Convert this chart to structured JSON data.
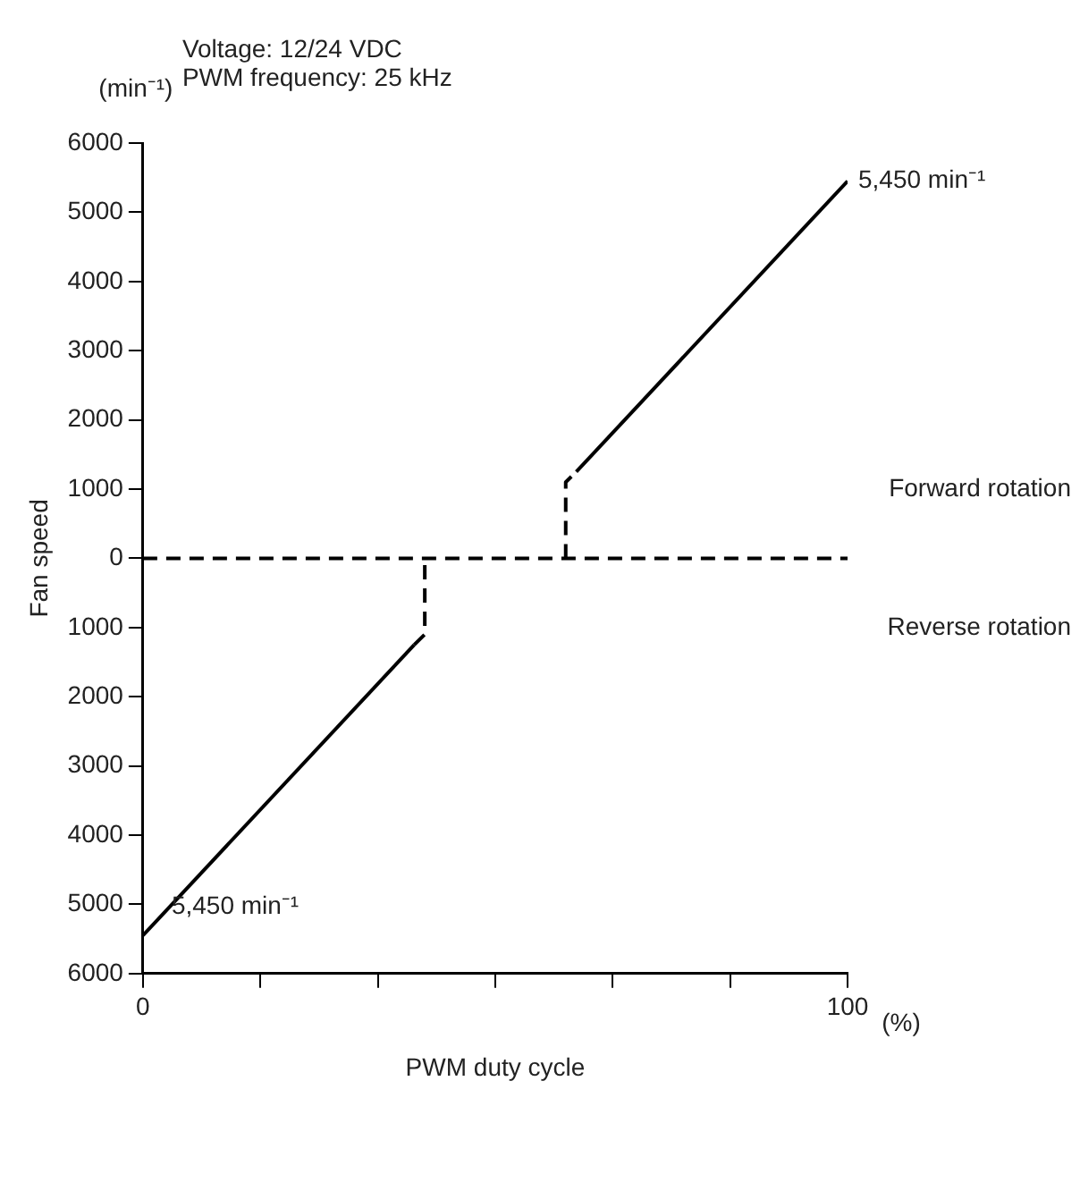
{
  "chart_data": {
    "type": "line",
    "xlabel": "PWM duty cycle",
    "ylabel": "Fan speed",
    "annotations": [
      "Voltage: 12/24 VDC",
      "PWM frequency: 25 kHz",
      "(min⁻¹)",
      "(%)",
      "Forward rotation",
      "Reverse rotation",
      {
        "text": "5,450 min⁻¹",
        "x": 100,
        "y": 5450
      },
      {
        "text": "5,450 min⁻¹",
        "x": 0,
        "y": -5450
      }
    ],
    "series": [
      {
        "color": "#000000",
        "line_style": "solid",
        "x": [
          0,
          38.5
        ],
        "values": [
          -5450,
          -1250
        ]
      },
      {
        "color": "#000000",
        "line_style": "dashed",
        "x": [
          38.5,
          40,
          40
        ],
        "values": [
          -1250,
          -1100,
          0
        ]
      },
      {
        "color": "#000000",
        "line_style": "dashed",
        "x": [
          0,
          100
        ],
        "values": [
          0,
          0
        ]
      },
      {
        "color": "#000000",
        "line_style": "dashed",
        "x": [
          60,
          60,
          61.5
        ],
        "values": [
          0,
          1100,
          1250
        ]
      },
      {
        "color": "#000000",
        "line_style": "solid",
        "x": [
          61.5,
          100
        ],
        "values": [
          1250,
          5450
        ]
      }
    ],
    "xlim": [
      0,
      100
    ],
    "xticks": [
      0,
      {
        "value": 16.67,
        "label": null
      },
      {
        "value": 33.33,
        "label": null
      },
      {
        "value": 50,
        "label": null
      },
      {
        "value": 66.67,
        "label": null
      },
      {
        "value": 83.33,
        "label": null
      },
      100
    ],
    "ylim": [
      -6000,
      6000
    ],
    "yticks": [
      {
        "value": -6000,
        "label": "6000"
      },
      {
        "value": -5000,
        "label": "5000"
      },
      {
        "value": -4000,
        "label": "4000"
      },
      {
        "value": -3000,
        "label": "3000"
      },
      {
        "value": -2000,
        "label": "2000"
      },
      {
        "value": -1000,
        "label": "1000"
      },
      0,
      1000,
      2000,
      3000,
      4000,
      5000,
      6000
    ],
    "grid": false,
    "legend": false,
    "marker": "none"
  }
}
